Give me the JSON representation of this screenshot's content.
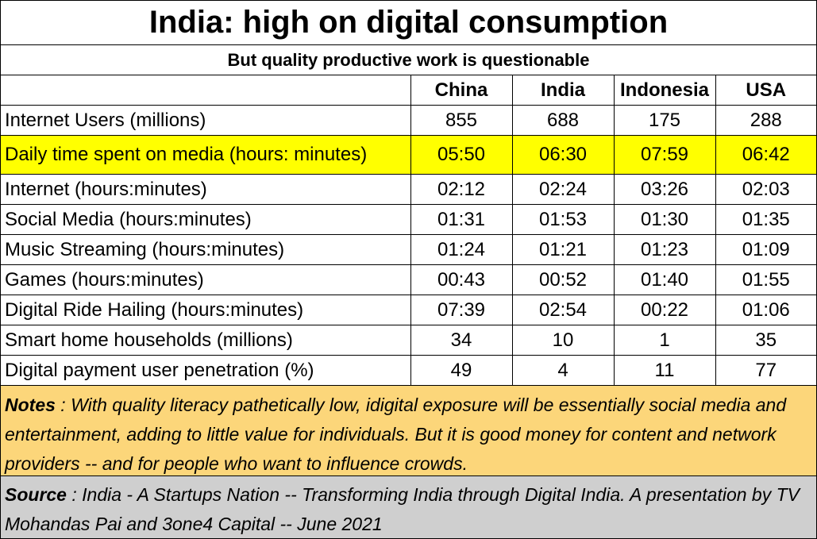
{
  "chart_data": {
    "type": "table",
    "title": "India: high on digital consumption",
    "subtitle": "But quality productive work is questionable",
    "columns": [
      "China",
      "India",
      "Indonesia",
      "USA"
    ],
    "rows": [
      {
        "label": "Internet Users (millions)",
        "values": [
          "855",
          "688",
          "175",
          "288"
        ],
        "highlight": false
      },
      {
        "label": "Daily time spent on media (hours: minutes)",
        "values": [
          "05:50",
          "06:30",
          "07:59",
          "06:42"
        ],
        "highlight": true
      },
      {
        "label": "Internet (hours:minutes)",
        "values": [
          "02:12",
          "02:24",
          "03:26",
          "02:03"
        ],
        "highlight": false
      },
      {
        "label": "Social Media (hours:minutes)",
        "values": [
          "01:31",
          "01:53",
          "01:30",
          "01:35"
        ],
        "highlight": false
      },
      {
        "label": "Music Streaming (hours:minutes)",
        "values": [
          "01:24",
          "01:21",
          "01:23",
          "01:09"
        ],
        "highlight": false
      },
      {
        "label": "Games (hours:minutes)",
        "values": [
          "00:43",
          "00:52",
          "01:40",
          "01:55"
        ],
        "highlight": false
      },
      {
        "label": "Digital Ride Hailing  (hours:minutes)",
        "values": [
          "07:39",
          "02:54",
          "00:22",
          "01:06"
        ],
        "highlight": false
      },
      {
        "label": "Smart home households (millions)",
        "values": [
          "34",
          "10",
          "1",
          "35"
        ],
        "highlight": false
      },
      {
        "label": "Digital payment user penetration (%)",
        "values": [
          "49",
          "4",
          "11",
          "77"
        ],
        "highlight": false
      }
    ]
  },
  "notes": {
    "label": "Notes",
    "text": " : With quality literacy pathetically low, idigital exposure will be essentially social media and entertainment, adding to little value for individuals.  But it is good money for content and network providers -- and for people who want to influence crowds."
  },
  "source": {
    "label": "Source",
    "text": " : India - A Startups Nation -- Transforming India through Digital India. A presentation by TV Mohandas Pai and 3one4 Capital -- June 2021"
  },
  "colors": {
    "highlight": "#ffff00",
    "notes_bg": "#fcd67a",
    "source_bg": "#cfcfcf"
  }
}
